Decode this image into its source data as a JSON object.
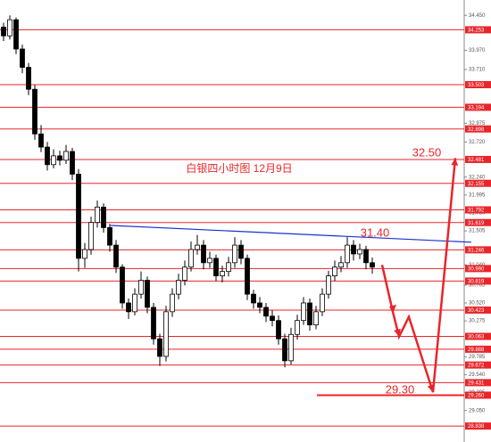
{
  "chart_data": {
    "type": "candlestick",
    "title": "白银四小时图   12月9日",
    "ylim": [
      28.62,
      34.66
    ],
    "yticks": [
      {
        "value": 34.45,
        "label": "34.450"
      },
      {
        "value": 33.97,
        "label": "33.970"
      },
      {
        "value": 33.71,
        "label": "33.710"
      },
      {
        "value": 32.975,
        "label": "32.975"
      },
      {
        "value": 32.72,
        "label": "32.720"
      },
      {
        "value": 32.24,
        "label": "32.240"
      },
      {
        "value": 31.995,
        "label": "31.995"
      },
      {
        "value": 31.75,
        "label": "31.750"
      },
      {
        "value": 31.505,
        "label": "31.505"
      },
      {
        "value": 31.04,
        "label": "31.040"
      },
      {
        "value": 30.765,
        "label": "30.765"
      },
      {
        "value": 30.52,
        "label": "30.520"
      },
      {
        "value": 30.275,
        "label": "30.275"
      },
      {
        "value": 29.785,
        "label": "29.785"
      },
      {
        "value": 29.54,
        "label": "29.540"
      },
      {
        "value": 29.295,
        "label": "29.295"
      },
      {
        "value": 29.05,
        "label": "29.050"
      }
    ],
    "levels": [
      {
        "value": 34.253,
        "label": "34.253"
      },
      {
        "value": 33.503,
        "label": "33.503"
      },
      {
        "value": 33.194,
        "label": "33.194"
      },
      {
        "value": 32.898,
        "label": "32.898"
      },
      {
        "value": 32.481,
        "label": "32.481"
      },
      {
        "value": 32.155,
        "label": "32.155"
      },
      {
        "value": 31.792,
        "label": "31.792"
      },
      {
        "value": 31.619,
        "label": "31.619"
      },
      {
        "value": 31.246,
        "label": "31.246"
      },
      {
        "value": 30.99,
        "label": "30.990"
      },
      {
        "value": 30.819,
        "label": "30.819"
      },
      {
        "value": 30.423,
        "label": "30.423"
      },
      {
        "value": 30.063,
        "label": "30.063"
      },
      {
        "value": 29.888,
        "label": "29.888"
      },
      {
        "value": 29.672,
        "label": "29.672"
      },
      {
        "value": 29.431,
        "label": "29.431"
      },
      {
        "value": 29.26,
        "label": "29.260"
      },
      {
        "value": 28.838,
        "label": "28.838"
      }
    ],
    "level_color": "#e8262a",
    "up_color": "#ffffff",
    "down_color": "#000000",
    "trend_color": "#1a2fd0",
    "candles": [
      [
        34.29,
        34.35,
        34.1,
        34.17
      ],
      [
        34.17,
        34.45,
        34.12,
        34.39
      ],
      [
        34.39,
        34.42,
        33.92,
        33.99
      ],
      [
        33.99,
        34.05,
        33.66,
        33.74
      ],
      [
        33.74,
        33.8,
        33.36,
        33.44
      ],
      [
        33.44,
        33.5,
        32.75,
        32.83
      ],
      [
        32.83,
        32.95,
        32.58,
        32.65
      ],
      [
        32.65,
        32.72,
        32.33,
        32.41
      ],
      [
        32.41,
        32.62,
        32.36,
        32.53
      ],
      [
        32.53,
        32.6,
        32.4,
        32.47
      ],
      [
        32.47,
        32.68,
        32.42,
        32.59
      ],
      [
        32.59,
        32.64,
        32.2,
        32.28
      ],
      [
        32.28,
        32.35,
        30.95,
        31.13
      ],
      [
        31.13,
        31.34,
        31.0,
        31.25
      ],
      [
        31.25,
        31.7,
        31.18,
        31.62
      ],
      [
        31.62,
        31.92,
        31.55,
        31.83
      ],
      [
        31.83,
        31.88,
        31.48,
        31.55
      ],
      [
        31.55,
        31.6,
        31.22,
        31.31
      ],
      [
        31.31,
        31.38,
        30.93,
        31.01
      ],
      [
        31.01,
        31.05,
        30.44,
        30.52
      ],
      [
        30.52,
        30.58,
        30.3,
        30.4
      ],
      [
        30.4,
        30.72,
        30.35,
        30.64
      ],
      [
        30.64,
        30.95,
        30.58,
        30.83
      ],
      [
        30.83,
        30.88,
        30.38,
        30.46
      ],
      [
        30.46,
        30.52,
        29.95,
        30.03
      ],
      [
        30.03,
        30.1,
        29.66,
        29.79
      ],
      [
        29.79,
        30.48,
        29.72,
        30.4
      ],
      [
        30.4,
        30.72,
        30.33,
        30.64
      ],
      [
        30.64,
        30.92,
        30.57,
        30.83
      ],
      [
        30.83,
        31.1,
        30.76,
        31.01
      ],
      [
        31.01,
        31.36,
        30.95,
        31.25
      ],
      [
        31.25,
        31.45,
        31.18,
        31.31
      ],
      [
        31.31,
        31.38,
        30.98,
        31.07
      ],
      [
        31.07,
        31.22,
        31.0,
        31.13
      ],
      [
        31.13,
        31.18,
        30.82,
        30.89
      ],
      [
        30.89,
        31.03,
        30.8,
        30.95
      ],
      [
        30.95,
        31.15,
        30.88,
        31.07
      ],
      [
        31.07,
        31.42,
        31.0,
        31.31
      ],
      [
        31.31,
        31.38,
        31.05,
        31.13
      ],
      [
        31.13,
        31.18,
        30.56,
        30.64
      ],
      [
        30.64,
        30.7,
        30.44,
        30.52
      ],
      [
        30.52,
        30.6,
        30.38,
        30.46
      ],
      [
        30.46,
        30.52,
        30.26,
        30.34
      ],
      [
        30.34,
        30.42,
        30.2,
        30.28
      ],
      [
        30.28,
        30.35,
        29.95,
        30.03
      ],
      [
        30.03,
        30.1,
        29.64,
        29.73
      ],
      [
        29.73,
        30.18,
        29.68,
        30.09
      ],
      [
        30.09,
        30.36,
        30.02,
        30.28
      ],
      [
        30.28,
        30.6,
        30.22,
        30.52
      ],
      [
        30.52,
        30.58,
        30.14,
        30.22
      ],
      [
        30.22,
        30.48,
        30.16,
        30.4
      ],
      [
        30.4,
        30.72,
        30.34,
        30.64
      ],
      [
        30.64,
        30.96,
        30.58,
        30.89
      ],
      [
        30.89,
        31.1,
        30.82,
        31.01
      ],
      [
        31.01,
        31.16,
        30.94,
        31.07
      ],
      [
        31.07,
        31.42,
        31.0,
        31.31
      ],
      [
        31.31,
        31.38,
        31.1,
        31.19
      ],
      [
        31.19,
        31.33,
        31.12,
        31.25
      ],
      [
        31.25,
        31.3,
        30.98,
        31.07
      ],
      [
        31.07,
        31.14,
        30.92,
        31.01
      ]
    ],
    "trendline": [
      31.58,
      31.35
    ],
    "forecast": [
      31.04,
      30.4,
      30.06,
      30.33,
      29.3,
      32.5
    ],
    "annotations": [
      "31.40",
      "32.50",
      "29.30"
    ]
  }
}
